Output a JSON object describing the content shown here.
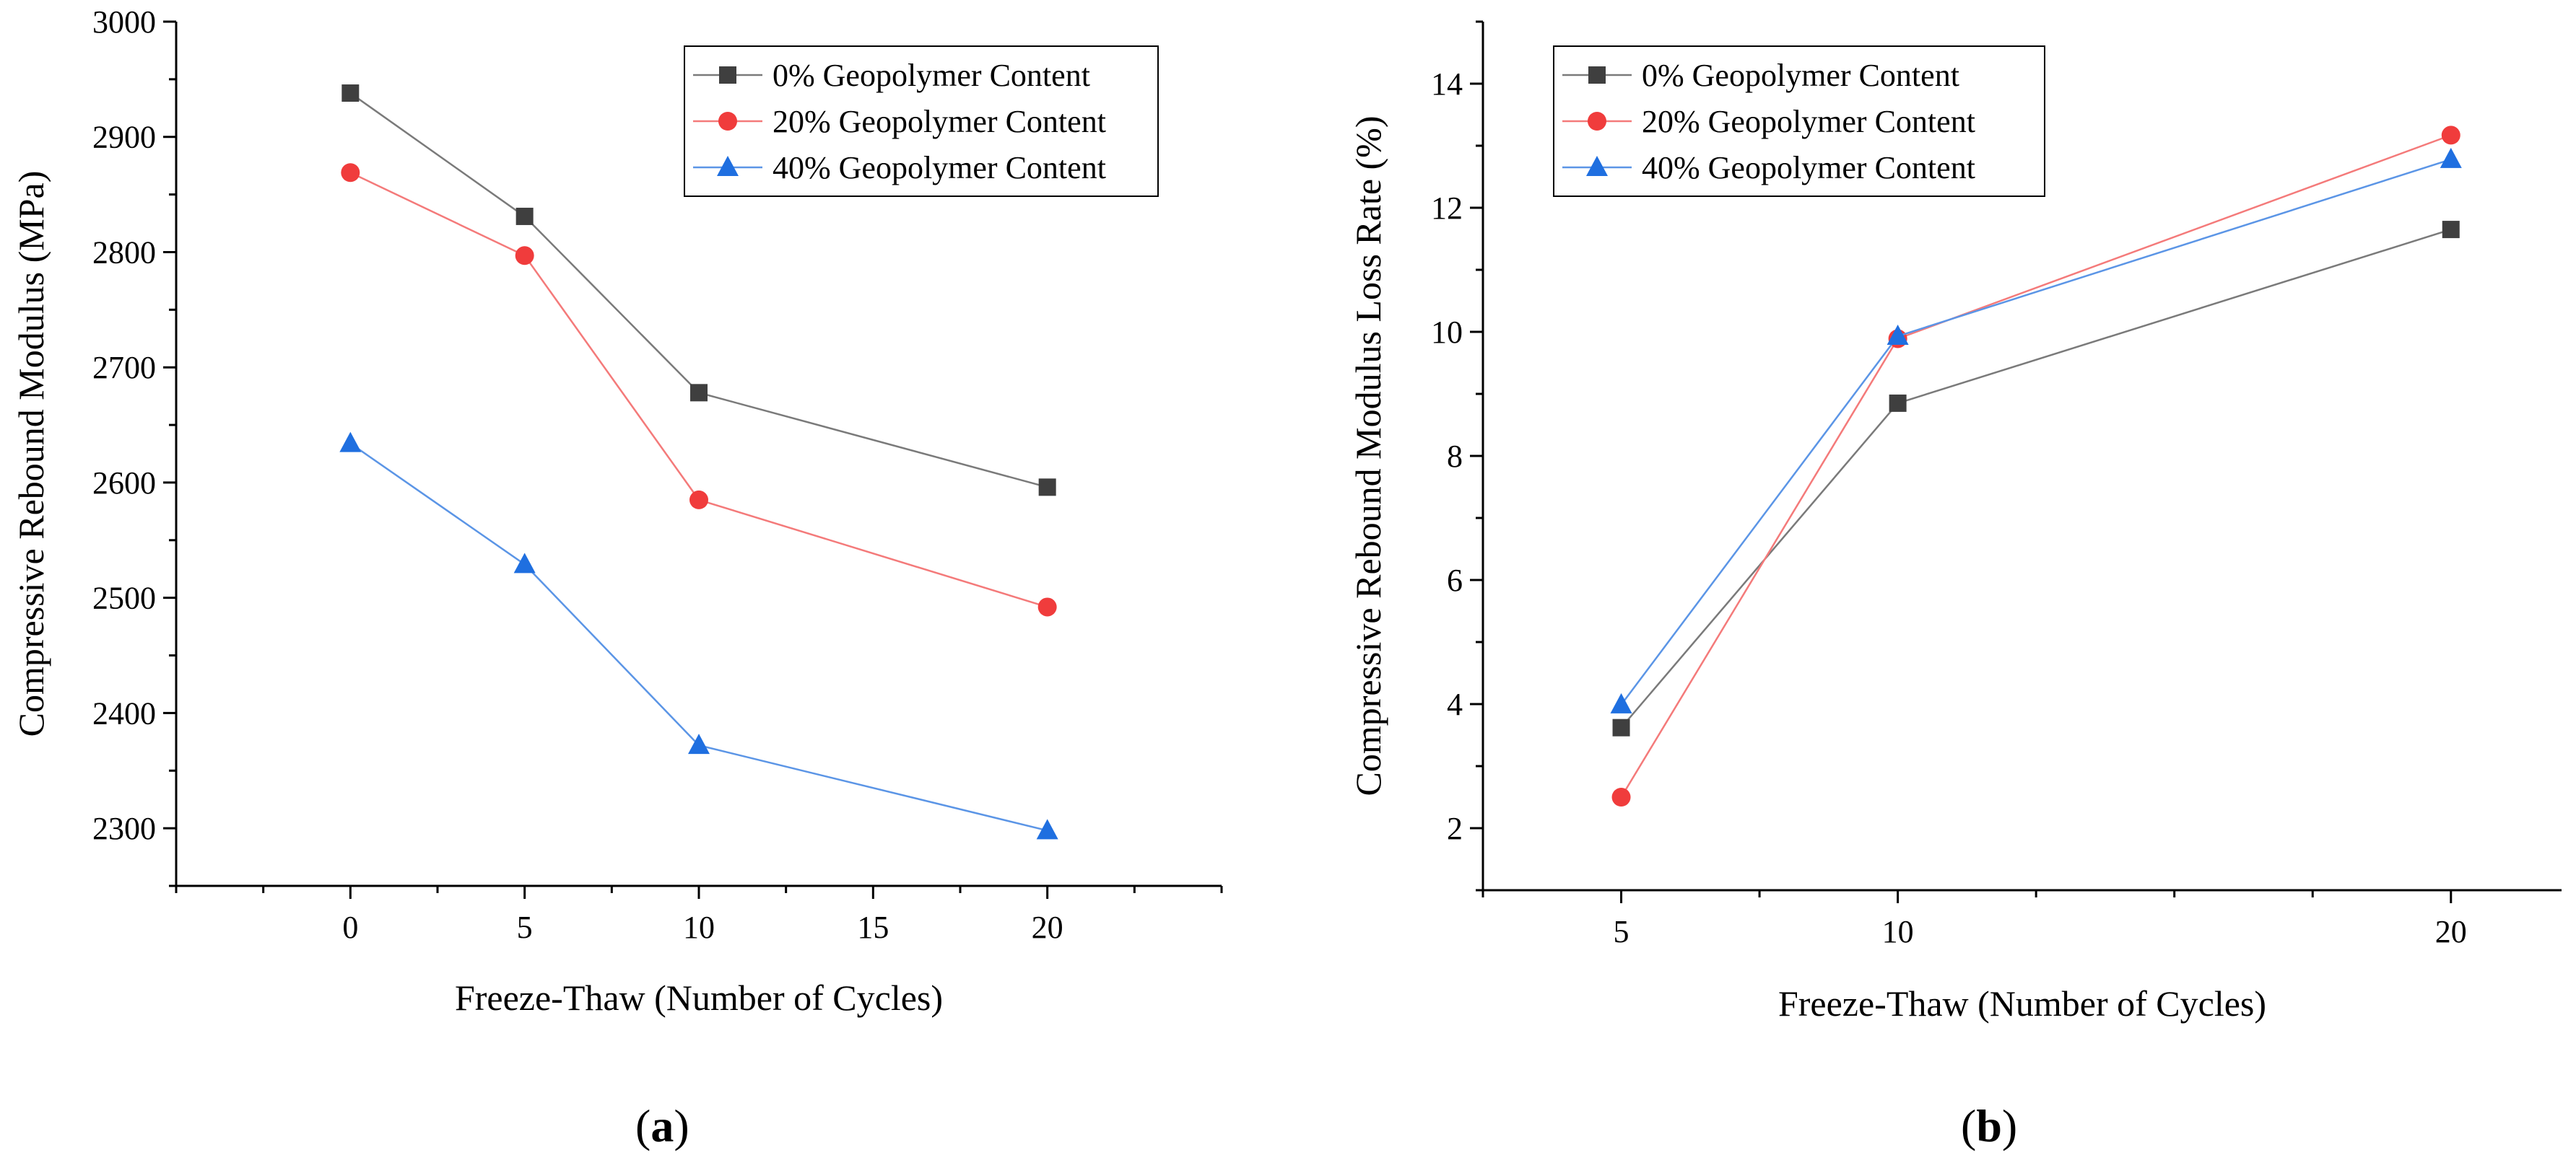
{
  "chart_data": [
    {
      "id": "a",
      "type": "line",
      "panel_label": "a",
      "xlabel": "Freeze-Thaw (Number of Cycles)",
      "ylabel": "Compressive Rebound Modulus (MPa)",
      "xlim": [
        -5,
        25
      ],
      "ylim": [
        2250,
        3000
      ],
      "xticks": [
        0,
        5,
        10,
        15,
        20
      ],
      "yticks": [
        2300,
        2400,
        2500,
        2600,
        2700,
        2800,
        2900,
        3000
      ],
      "x": [
        0,
        5,
        10,
        20
      ],
      "legend_position": "top-right",
      "series": [
        {
          "name": "0% Geopolymer Content",
          "marker": "square",
          "color": "#3f3f3f",
          "line_color": "#7a7a7a",
          "values": [
            2938,
            2831,
            2678,
            2596
          ]
        },
        {
          "name": "20% Geopolymer Content",
          "marker": "circle",
          "color": "#f03c3c",
          "line_color": "#f47a7a",
          "values": [
            2869,
            2797,
            2585,
            2492
          ]
        },
        {
          "name": "40% Geopolymer Content",
          "marker": "triangle",
          "color": "#1f6fe0",
          "line_color": "#5b95e6",
          "values": [
            2634,
            2529,
            2372,
            2298
          ]
        }
      ]
    },
    {
      "id": "b",
      "type": "line",
      "panel_label": "b",
      "xlabel": "Freeze-Thaw (Number of Cycles)",
      "ylabel": "Compressive Rebound Modulus Loss Rate (%)",
      "xlim": [
        2.5,
        22
      ],
      "ylim": [
        1,
        15
      ],
      "xticks": [
        5,
        10,
        20
      ],
      "yticks": [
        2,
        4,
        6,
        8,
        10,
        12,
        14
      ],
      "x": [
        5,
        10,
        20
      ],
      "legend_position": "top-left",
      "series": [
        {
          "name": "0% Geopolymer Content",
          "marker": "square",
          "color": "#3f3f3f",
          "line_color": "#7a7a7a",
          "values": [
            3.62,
            8.85,
            11.65
          ]
        },
        {
          "name": "20% Geopolymer Content",
          "marker": "circle",
          "color": "#f03c3c",
          "line_color": "#f47a7a",
          "values": [
            2.5,
            9.89,
            13.17
          ]
        },
        {
          "name": "40% Geopolymer Content",
          "marker": "triangle",
          "color": "#1f6fe0",
          "line_color": "#5b95e6",
          "values": [
            3.99,
            9.93,
            12.78
          ]
        }
      ]
    }
  ]
}
